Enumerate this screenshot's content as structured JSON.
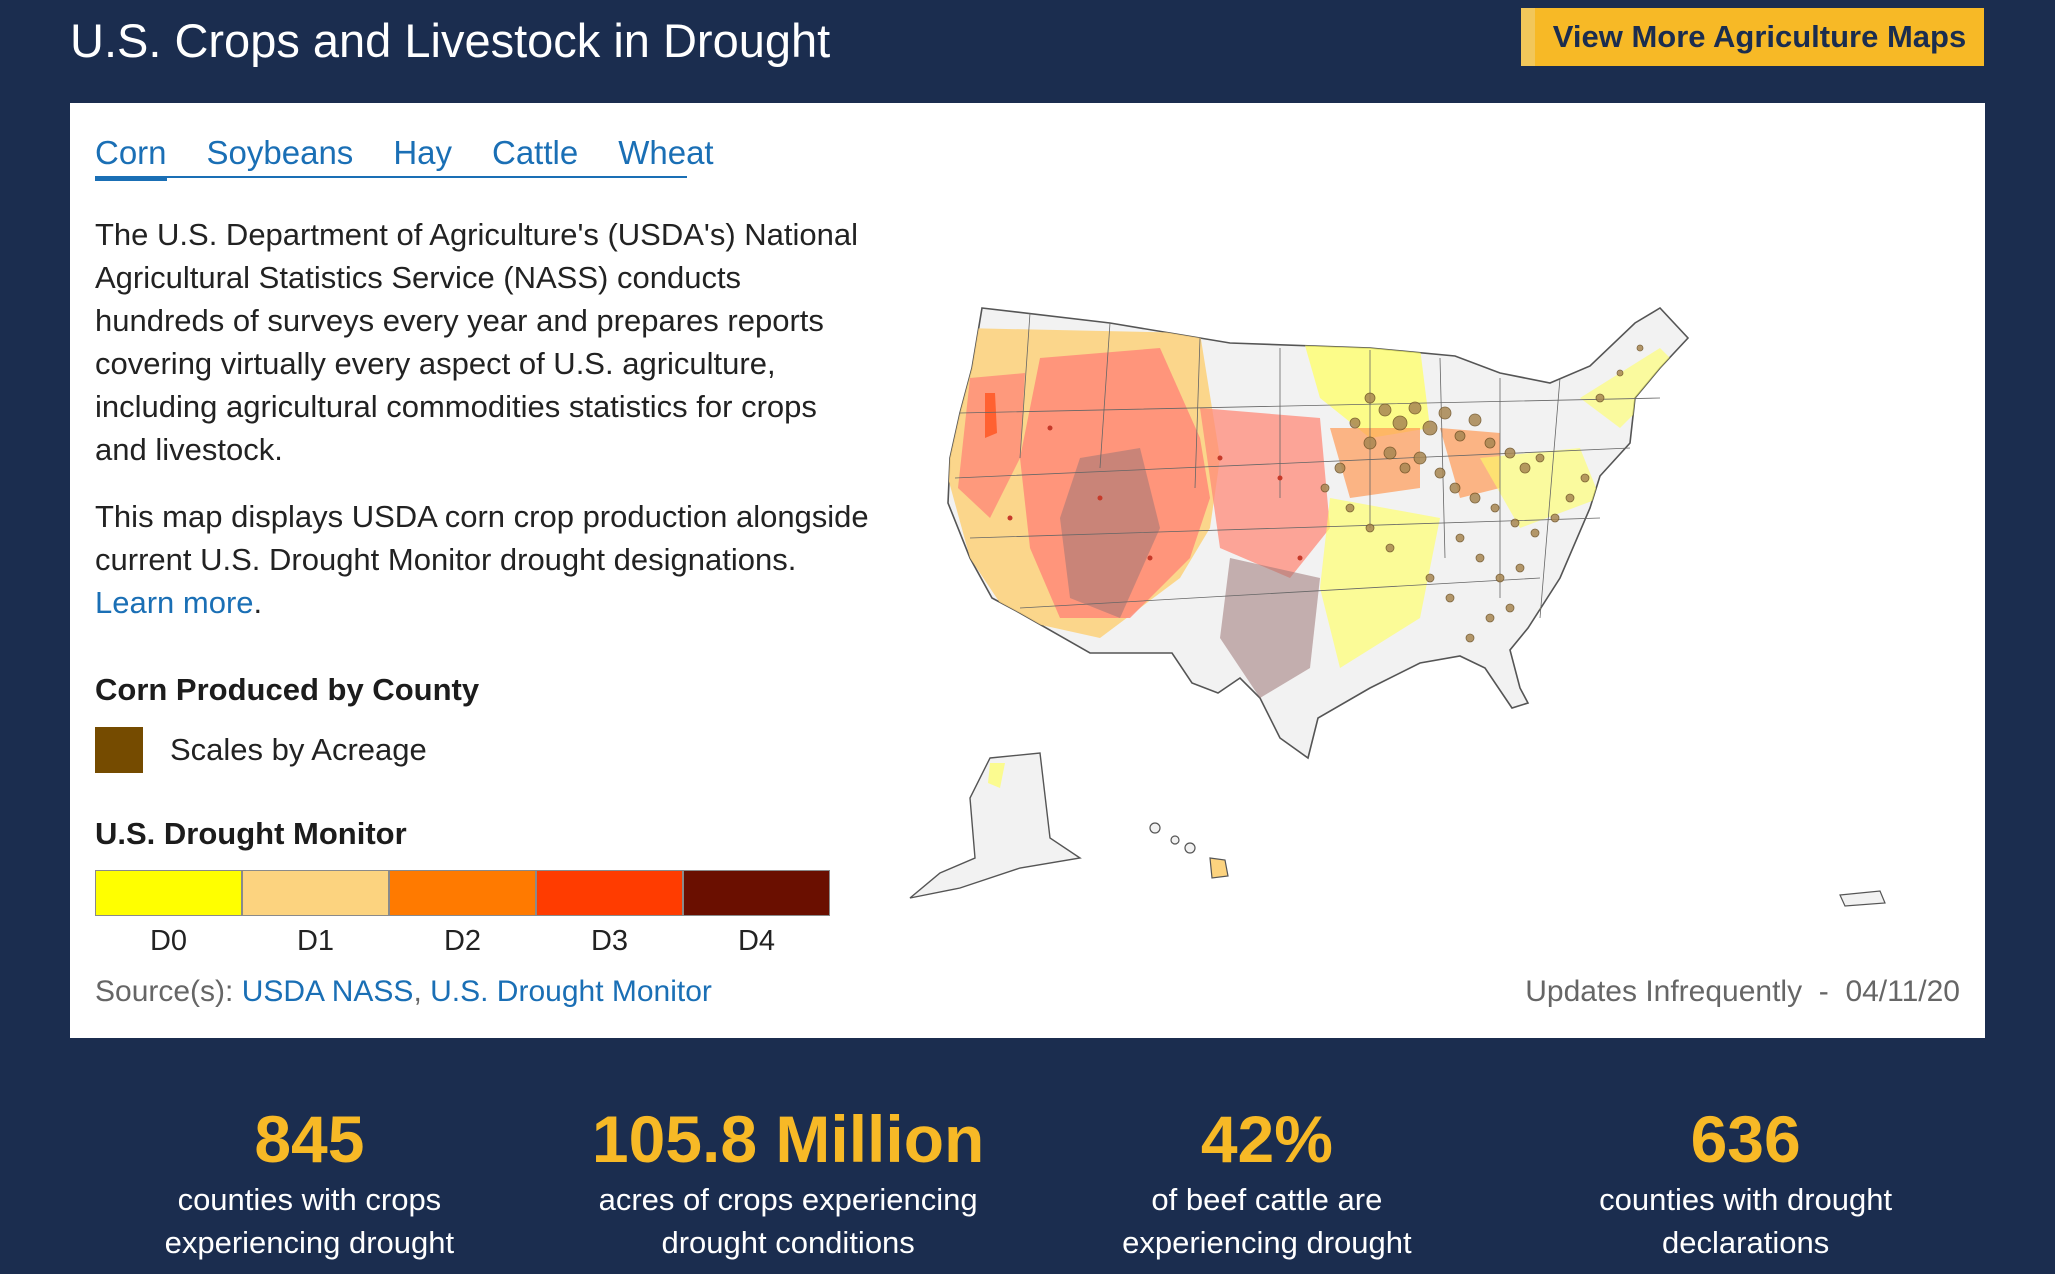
{
  "header": {
    "title": "U.S. Crops and Livestock in Drought",
    "button_label": "View More Agriculture Maps"
  },
  "tabs": [
    {
      "label": "Corn",
      "active": true
    },
    {
      "label": "Soybeans",
      "active": false
    },
    {
      "label": "Hay",
      "active": false
    },
    {
      "label": "Cattle",
      "active": false
    },
    {
      "label": "Wheat",
      "active": false
    }
  ],
  "description": {
    "p1": "The U.S. Department of Agriculture's (USDA's) National Agricultural Statistics Service (NASS) conducts hundreds of surveys every year and prepares reports covering virtually every aspect of U.S. agriculture, including agricultural commodities statistics for crops and livestock.",
    "p2_text": "This map displays USDA corn crop production alongside current U.S. Drought Monitor drought designations.",
    "p2_link": "Learn more",
    "p2_end": "."
  },
  "legend": {
    "corn_heading": "Corn Produced by County",
    "corn_swatch_color": "#754b00",
    "corn_label": "Scales by Acreage",
    "drought_heading": "U.S. Drought Monitor",
    "drought_levels": [
      {
        "label": "D0",
        "color": "#ffff00"
      },
      {
        "label": "D1",
        "color": "#fcd37f"
      },
      {
        "label": "D2",
        "color": "#ff7a00"
      },
      {
        "label": "D3",
        "color": "#ff3c00"
      },
      {
        "label": "D4",
        "color": "#6a0f00"
      }
    ]
  },
  "footer": {
    "source_prefix": "Source(s): ",
    "source_link1": "USDA NASS",
    "source_sep": ", ",
    "source_link2": "U.S. Drought Monitor",
    "updates": "Updates Infrequently",
    "updates_sep": "  -  ",
    "date": "04/11/20"
  },
  "stats": [
    {
      "value": "845",
      "line1": "counties with crops",
      "line2": "experiencing drought"
    },
    {
      "value": "105.8 Million",
      "line1": "acres of crops experiencing",
      "line2": "drought conditions"
    },
    {
      "value": "42%",
      "line1": "of beef cattle are",
      "line2": "experiencing drought"
    },
    {
      "value": "636",
      "line1": "counties with drought",
      "line2": "declarations"
    }
  ],
  "colors": {
    "background": "#1b2d4f",
    "accent": "#f7b926",
    "link": "#1a6fb5",
    "no_drought": "#f2f2f2"
  }
}
